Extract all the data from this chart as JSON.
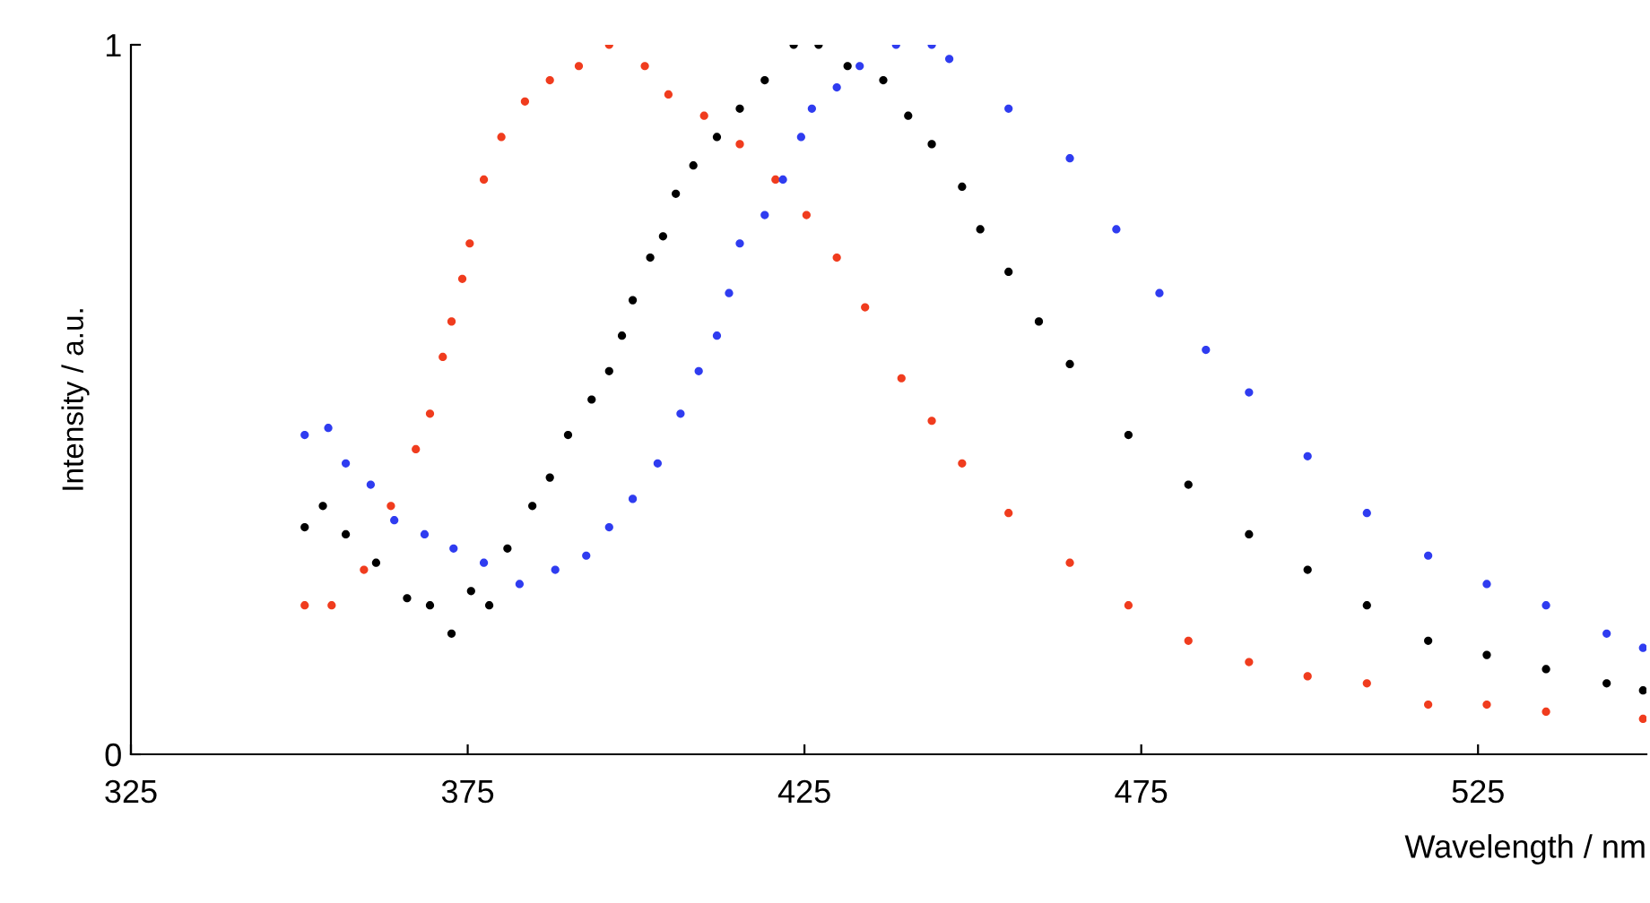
{
  "chart_data": {
    "type": "scatter",
    "xlabel": "Wavelength / nm",
    "ylabel": "Intensity / a.u.",
    "xlim": [
      325,
      550
    ],
    "xticks": [
      325,
      375,
      425,
      475,
      525
    ],
    "ylim": [
      0,
      1
    ],
    "yticks": [
      0,
      1
    ],
    "grid": false,
    "marker": "circle",
    "series": [
      {
        "color": "#f03c1e",
        "x": [
          350.8,
          354.8,
          359.6,
          363.6,
          367.3,
          369.4,
          371.3,
          372.6,
          374.2,
          375.3,
          377.4,
          380,
          383.5,
          387.2,
          391.5,
          396,
          401.3,
          404.8,
          410.1,
          415.4,
          420.7,
          425.3,
          429.8,
          434,
          439.4,
          443.9,
          448.4,
          455.3,
          464.4,
          473.1,
          482,
          491,
          499.7,
          508.5,
          517.6,
          526.3,
          535.1,
          549.5
        ],
        "values": [
          0.21,
          0.21,
          0.26,
          0.35,
          0.43,
          0.48,
          0.56,
          0.61,
          0.67,
          0.72,
          0.81,
          0.87,
          0.92,
          0.95,
          0.97,
          1.0,
          0.97,
          0.93,
          0.9,
          0.86,
          0.81,
          0.76,
          0.7,
          0.63,
          0.53,
          0.47,
          0.41,
          0.34,
          0.27,
          0.21,
          0.16,
          0.13,
          0.11,
          0.1,
          0.07,
          0.07,
          0.06,
          0.05
        ]
      },
      {
        "color": "#000000",
        "x": [
          350.8,
          353.5,
          356.9,
          361.4,
          366,
          369.4,
          372.6,
          375.5,
          378.2,
          380.9,
          384.6,
          387.2,
          389.9,
          393.4,
          396,
          397.9,
          399.5,
          402.1,
          404,
          405.9,
          408.5,
          412,
          415.4,
          419.1,
          423.4,
          427.1,
          431.4,
          436.7,
          440.4,
          443.9,
          448.4,
          451.1,
          455.3,
          459.8,
          464.4,
          473.1,
          482,
          491,
          499.7,
          508.5,
          517.6,
          526.3,
          535.1,
          544.1,
          549.5
        ],
        "values": [
          0.32,
          0.35,
          0.31,
          0.27,
          0.22,
          0.21,
          0.17,
          0.23,
          0.21,
          0.29,
          0.35,
          0.39,
          0.45,
          0.5,
          0.54,
          0.59,
          0.64,
          0.7,
          0.73,
          0.79,
          0.83,
          0.87,
          0.91,
          0.95,
          1.0,
          1.0,
          0.97,
          0.95,
          0.9,
          0.86,
          0.8,
          0.74,
          0.68,
          0.61,
          0.55,
          0.45,
          0.38,
          0.31,
          0.26,
          0.21,
          0.16,
          0.14,
          0.12,
          0.1,
          0.09
        ]
      },
      {
        "color": "#2f3cf0",
        "x": [
          350.8,
          354.3,
          356.9,
          360.6,
          364.1,
          368.6,
          372.9,
          377.4,
          382.7,
          388,
          392.6,
          396,
          399.5,
          403.2,
          406.6,
          409.3,
          412,
          413.8,
          415.4,
          419.1,
          421.8,
          424.5,
          426.1,
          429.8,
          433.2,
          438.6,
          443.9,
          446.5,
          455.3,
          464.4,
          471.3,
          477.7,
          484.6,
          491,
          499.7,
          508.5,
          517.6,
          526.3,
          535.1,
          544.1,
          549.5
        ],
        "values": [
          0.45,
          0.46,
          0.41,
          0.38,
          0.33,
          0.31,
          0.29,
          0.27,
          0.24,
          0.26,
          0.28,
          0.32,
          0.36,
          0.41,
          0.48,
          0.54,
          0.59,
          0.65,
          0.72,
          0.76,
          0.81,
          0.87,
          0.91,
          0.94,
          0.97,
          1.0,
          1.0,
          0.98,
          0.91,
          0.84,
          0.74,
          0.65,
          0.57,
          0.51,
          0.42,
          0.34,
          0.28,
          0.24,
          0.21,
          0.17,
          0.15
        ]
      }
    ]
  }
}
